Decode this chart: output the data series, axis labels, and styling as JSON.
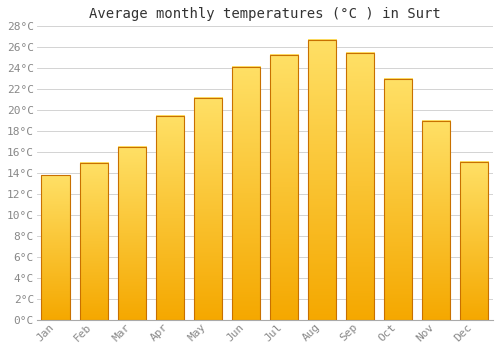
{
  "title": "Average monthly temperatures (°C ) in Surt",
  "months": [
    "Jan",
    "Feb",
    "Mar",
    "Apr",
    "May",
    "Jun",
    "Jul",
    "Aug",
    "Sep",
    "Oct",
    "Nov",
    "Dec"
  ],
  "temperatures": [
    13.8,
    15.0,
    16.5,
    19.5,
    21.2,
    24.1,
    25.3,
    26.7,
    25.5,
    23.0,
    19.0,
    15.1
  ],
  "bar_color_bottom": "#F5A800",
  "bar_color_top": "#FFE066",
  "bar_border_color": "#C87000",
  "background_color": "#FFFFFF",
  "grid_color": "#CCCCCC",
  "title_fontsize": 10,
  "tick_fontsize": 8,
  "tick_color": "#888888",
  "ylim": [
    0,
    28
  ],
  "yticks": [
    0,
    2,
    4,
    6,
    8,
    10,
    12,
    14,
    16,
    18,
    20,
    22,
    24,
    26,
    28
  ],
  "bar_width": 0.75
}
